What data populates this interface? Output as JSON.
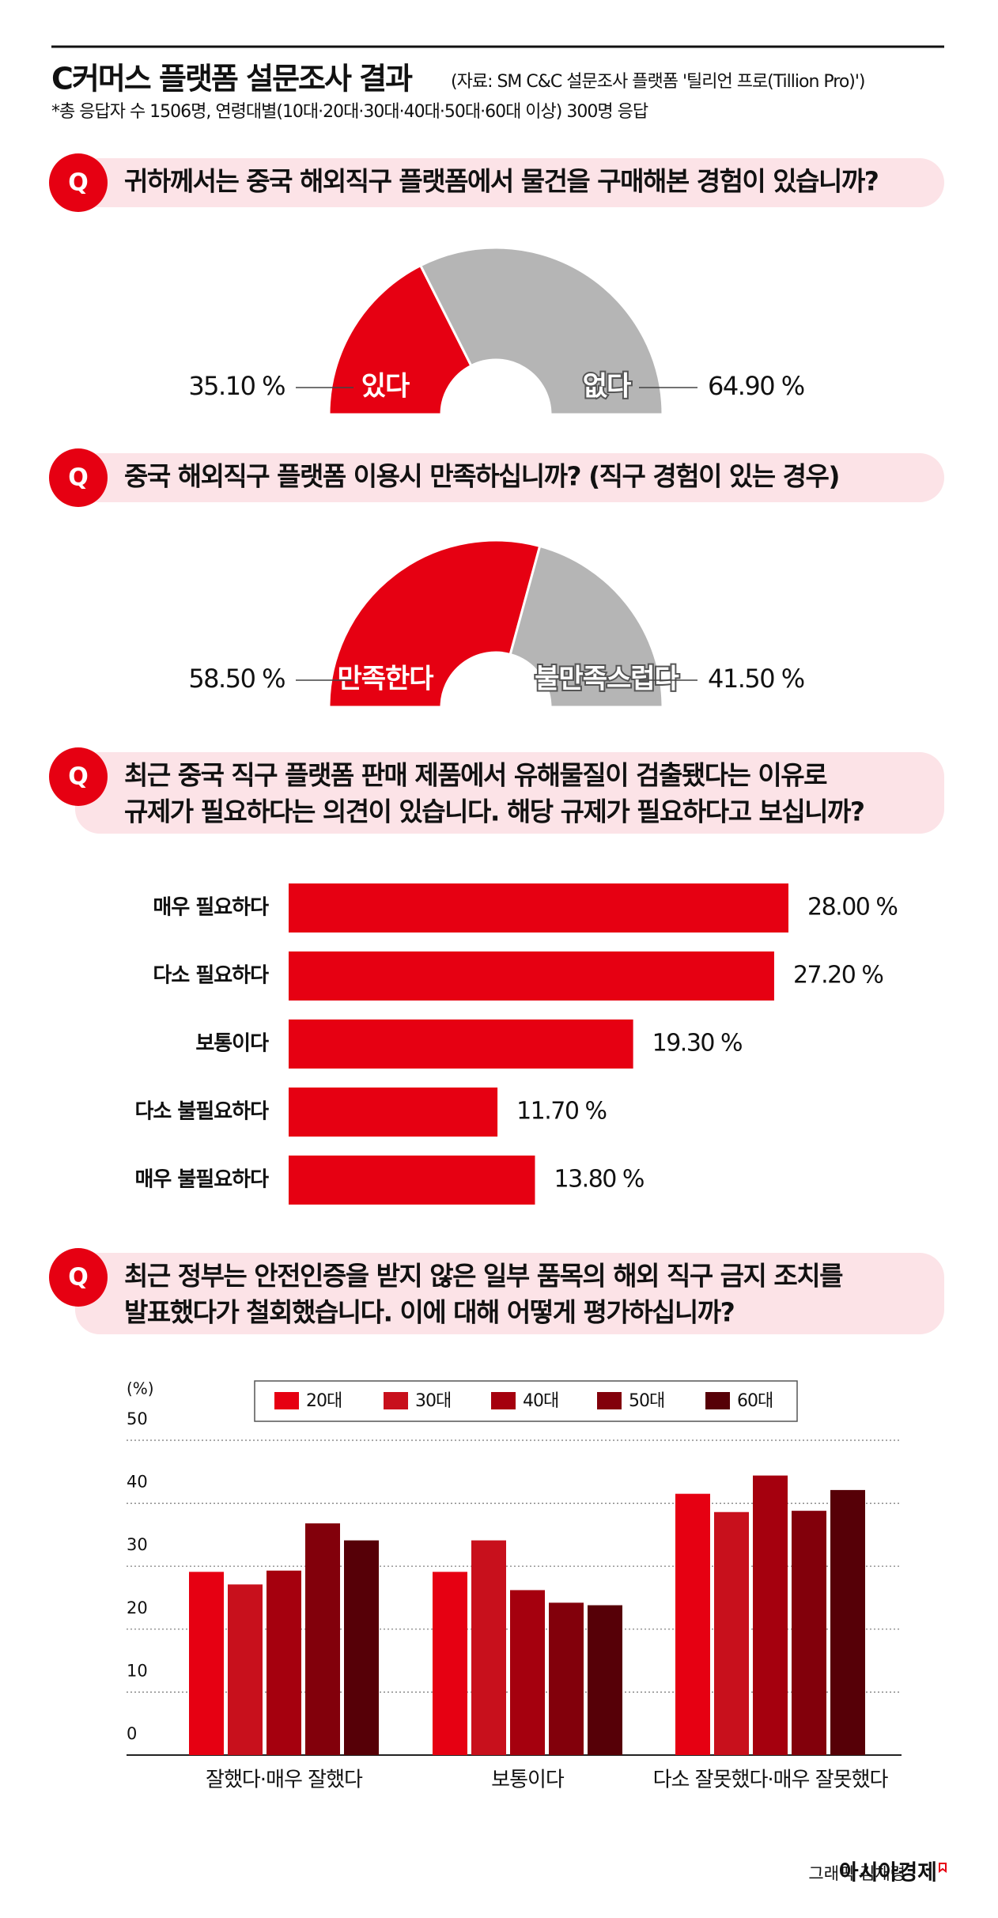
{
  "header": {
    "title": "C커머스 플랫폼 설문조사 결과",
    "source": "(자료: SM C&C 설문조사 플랫폼 '틸리언 프로(Tillion Pro)')",
    "note": "*총 응답자 수 1506명, 연령대별(10대·20대·30대·40대·50대·60대 이상) 300명 응답"
  },
  "q_marker": "Q",
  "chart_data": [
    {
      "type": "half-donut",
      "title": [
        "귀하께서는 중국 해외직구 플랫폼에서 물건을 구매해본 경험이 있습니까?"
      ],
      "categories": [
        "있다",
        "없다"
      ],
      "values": [
        35.1,
        64.9
      ],
      "value_labels": [
        "35.10 %",
        "64.90 %"
      ],
      "colors": [
        "#e60012",
        "#b5b5b5"
      ]
    },
    {
      "type": "half-donut",
      "title": [
        "중국 해외직구 플랫폼 이용시 만족하십니까? (직구 경험이 있는 경우)"
      ],
      "categories": [
        "만족한다",
        "불만족스럽다"
      ],
      "values": [
        58.5,
        41.5
      ],
      "value_labels": [
        "58.50 %",
        "41.50 %"
      ],
      "colors": [
        "#e60012",
        "#b5b5b5"
      ]
    },
    {
      "type": "hbar",
      "title": [
        "최근 중국 직구 플랫폼 판매 제품에서 유해물질이 검출됐다는 이유로",
        "규제가 필요하다는 의견이 있습니다. 해당 규제가 필요하다고 보십니까?"
      ],
      "categories": [
        "매우 필요하다",
        "다소 필요하다",
        "보통이다",
        "다소 불필요하다",
        "매우 불필요하다"
      ],
      "values": [
        28.0,
        27.2,
        19.3,
        11.7,
        13.8
      ],
      "value_labels": [
        "28.00 %",
        "27.20 %",
        "19.30 %",
        "11.70 %",
        "13.80 %"
      ],
      "color": "#e60012"
    },
    {
      "type": "grouped-bar",
      "title": [
        "최근 정부는 안전인증을 받지 않은 일부 품목의 해외 직구 금지 조치를",
        "발표했다가 철회했습니다. 이에 대해 어떻게 평가하십니까?"
      ],
      "y_label": "(%)",
      "categories": [
        "잘했다·매우 잘했다",
        "보통이다",
        "다소 잘못했다·매우 잘못했다"
      ],
      "series": [
        {
          "name": "20대",
          "color": "#e60012",
          "values": [
            29.1,
            29.1,
            41.5
          ]
        },
        {
          "name": "30대",
          "color": "#c8101c",
          "values": [
            27.1,
            34.1,
            38.6
          ]
        },
        {
          "name": "40대",
          "color": "#a5000e",
          "values": [
            29.3,
            26.2,
            44.4
          ]
        },
        {
          "name": "50대",
          "color": "#82000b",
          "values": [
            36.8,
            24.2,
            38.8
          ]
        },
        {
          "name": "60대",
          "color": "#560007",
          "values": [
            34.1,
            23.8,
            42.1
          ]
        }
      ],
      "ylim": [
        0,
        50
      ],
      "yticks": [
        0,
        10,
        20,
        30,
        40,
        50
      ],
      "grid": true,
      "legend": "top"
    }
  ],
  "footer": {
    "credit": "그래픽 김채령",
    "brand": "아시아경제"
  }
}
